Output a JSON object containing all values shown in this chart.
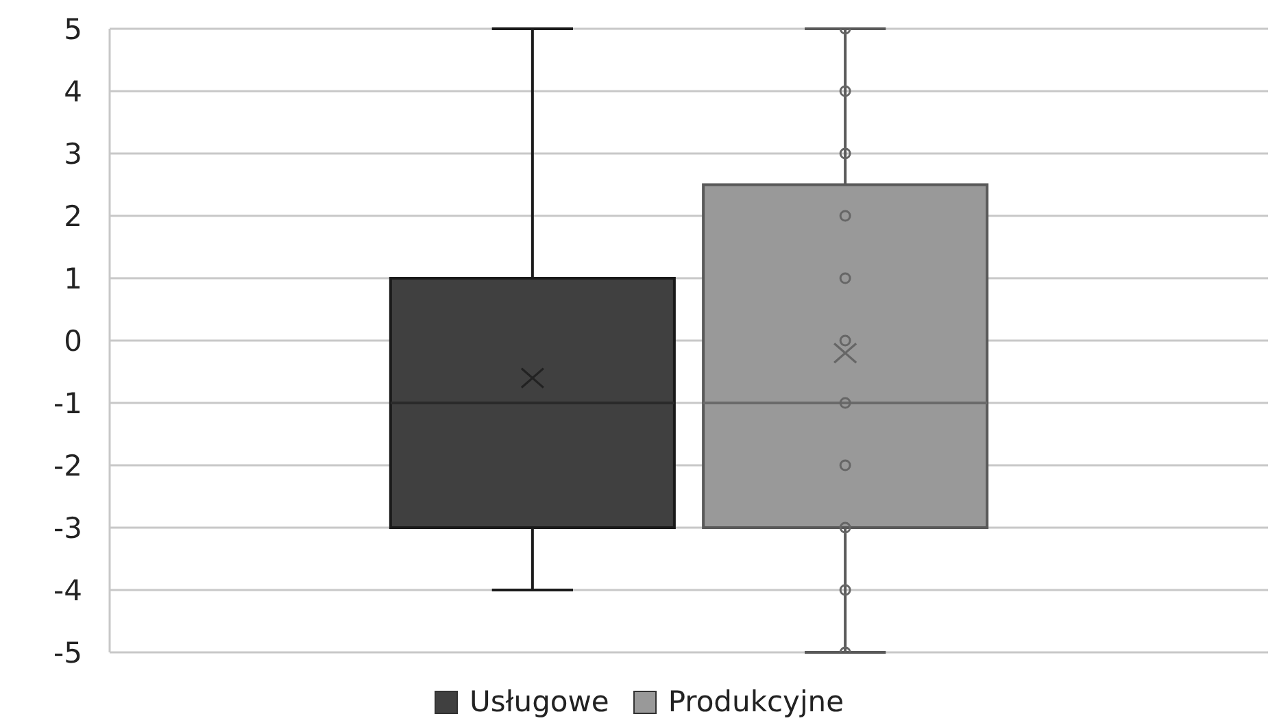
{
  "chart_data": {
    "type": "box",
    "categories": [
      null
    ],
    "series": [
      {
        "name": "Usługowe",
        "color": "#404040",
        "boxes": [
          {
            "low": -4,
            "q1": -3,
            "median": -1,
            "q3": 1,
            "high": 5,
            "mean": -0.6
          }
        ]
      },
      {
        "name": "Produkcyjne",
        "color": "#999999",
        "boxes": [
          {
            "low": -5,
            "q1": -3,
            "median": -1,
            "q3": 2.5,
            "high": 5,
            "mean": -0.2,
            "outliers": [
              -5,
              -4,
              -3,
              -2,
              -1,
              0,
              1,
              2,
              3,
              4,
              5
            ]
          }
        ]
      }
    ],
    "ylim": [
      -5,
      5
    ],
    "yticks": [
      -5,
      -4,
      -3,
      -2,
      -1,
      0,
      1,
      2,
      3,
      4,
      5
    ],
    "grid": "y",
    "legend": "bottom",
    "marker": "circle"
  }
}
